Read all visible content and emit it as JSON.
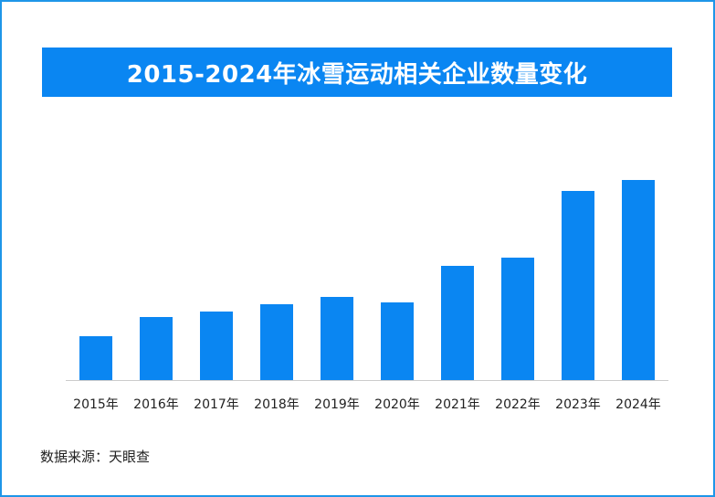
{
  "chart_data": {
    "type": "bar",
    "title": "2015-2024年冰雪运动相关企业数量变化",
    "categories": [
      "2015年",
      "2016年",
      "2017年",
      "2018年",
      "2019年",
      "2020年",
      "2021年",
      "2022年",
      "2023年",
      "2024年"
    ],
    "values": [
      48,
      69,
      75,
      83,
      91,
      85,
      125,
      134,
      207,
      219
    ],
    "ylim": [
      0,
      230
    ],
    "grid": false,
    "bar_color": "#0a86f2",
    "source": "数据来源：天眼查"
  },
  "colors": {
    "border": "#1e96e8",
    "title_bg": "#0a86f2",
    "bar": "#0a86f2",
    "axis": "#cccccc"
  }
}
